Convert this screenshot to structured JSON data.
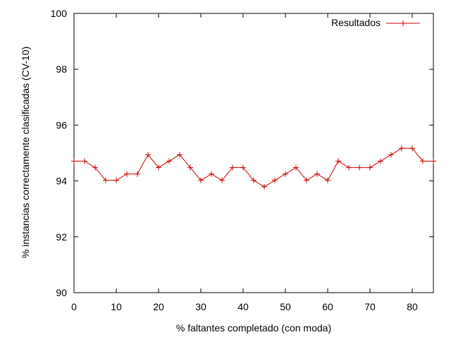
{
  "chart_data": {
    "type": "line",
    "title": "",
    "xlabel": "% faltantes completado (con moda)",
    "ylabel": "% instancias correctamente clasificadas (CV-10)",
    "xlim": [
      0,
      85
    ],
    "ylim": [
      90,
      100
    ],
    "xticks": [
      0,
      10,
      20,
      30,
      40,
      50,
      60,
      70,
      80
    ],
    "yticks": [
      90,
      92,
      94,
      96,
      98,
      100
    ],
    "xtick_labels": [
      "0",
      "10",
      "20",
      "30",
      "40",
      "50",
      "60",
      "70",
      "80"
    ],
    "ytick_labels": [
      "90",
      "92",
      "94",
      "96",
      "98",
      "100"
    ],
    "grid": false,
    "legend": "top-right",
    "series": [
      {
        "name": "Resultados",
        "color": "#cc0000",
        "marker": "plus",
        "x": [
          0,
          2.5,
          5,
          7.5,
          10,
          12.5,
          15,
          17.5,
          20,
          22.5,
          25,
          27.5,
          30,
          32.5,
          35,
          37.5,
          40,
          42.5,
          45,
          47.5,
          50,
          52.5,
          55,
          57.5,
          60,
          62.5,
          65,
          67.5,
          70,
          72.5,
          75,
          77.5,
          80,
          82.5,
          85
        ],
        "values": [
          94.71,
          94.71,
          94.48,
          94.02,
          94.02,
          94.25,
          94.25,
          94.94,
          94.48,
          94.71,
          94.94,
          94.48,
          94.02,
          94.25,
          94.02,
          94.48,
          94.48,
          94.02,
          93.79,
          94.02,
          94.25,
          94.48,
          94.02,
          94.25,
          94.02,
          94.71,
          94.48,
          94.48,
          94.48,
          94.71,
          94.94,
          95.17,
          95.17,
          94.71,
          94.71
        ]
      }
    ]
  }
}
